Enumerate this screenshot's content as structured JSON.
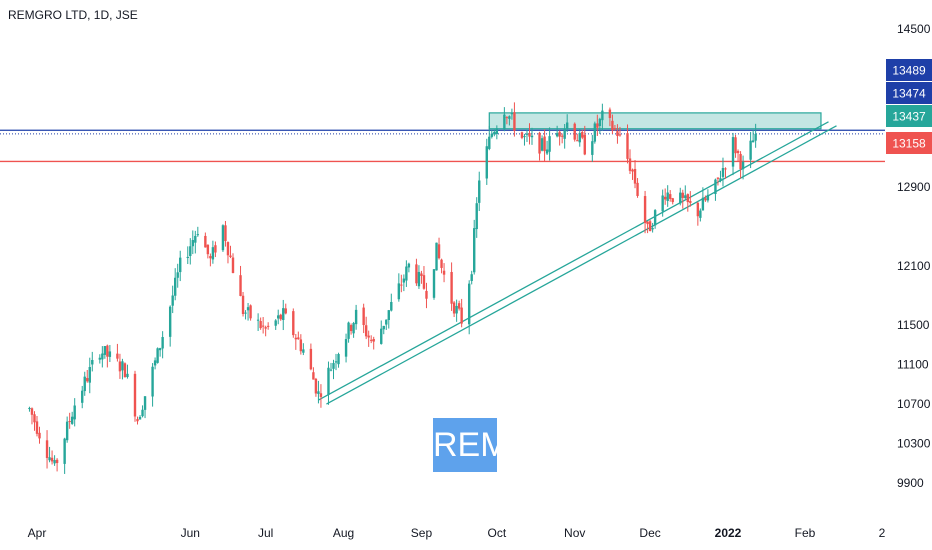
{
  "header": {
    "title": "REMGRO LTD, 1D, JSE"
  },
  "watermark": {
    "text": "REM"
  },
  "colors": {
    "up": "#26a69a",
    "down": "#ef5350",
    "support": "#26a69a",
    "blueLine": "#1e3fa8",
    "redLine": "#ef5350"
  },
  "chart_data": {
    "type": "candlestick",
    "title": "REMGRO LTD, 1D, JSE",
    "ylim": [
      9700,
      14700
    ],
    "y_ticks": [
      14500,
      12900,
      12100,
      11500,
      11100,
      10700,
      10300,
      9900
    ],
    "x_ticks": [
      "Apr",
      "Jun",
      "Jul",
      "Aug",
      "Sep",
      "Oct",
      "Nov",
      "Dec",
      "2022",
      "Feb",
      "2"
    ],
    "price_labels": [
      {
        "value": 13489,
        "label": "13489",
        "color": "#1e3fa8"
      },
      {
        "value": 13474,
        "label": "13474",
        "color": "#1e3fa8"
      },
      {
        "value": 13437,
        "label": "13437",
        "color": "#26a69a"
      },
      {
        "value": 13158,
        "label": "13158",
        "color": "#ef5350"
      }
    ],
    "horizontal_lines": [
      {
        "value": 13474,
        "color": "#1e3fa8",
        "style": "solid"
      },
      {
        "value": 13437,
        "color": "#1e3fa8",
        "style": "dotted"
      },
      {
        "value": 13158,
        "color": "#ef5350",
        "style": "solid"
      }
    ],
    "resistance_zone": {
      "from": 13489,
      "to": 13650,
      "start_date": "Sep 28",
      "end_date": "Feb 7"
    },
    "support_trendline": {
      "start_date": "Jul 22",
      "start_value": 10740,
      "end_date": "Feb 10",
      "end_value": 13560
    },
    "price_path": {
      "start": "Mar 29",
      "end": "Jan 12",
      "points": [
        {
          "date": "Mar 29",
          "close": 10650
        },
        {
          "date": "Apr 8",
          "close": 10050
        },
        {
          "date": "Apr 16",
          "close": 10700
        },
        {
          "date": "Apr 26",
          "close": 11250
        },
        {
          "date": "May 6",
          "close": 11050
        },
        {
          "date": "May 11",
          "close": 10550
        },
        {
          "date": "May 19",
          "close": 11200
        },
        {
          "date": "May 28",
          "close": 12100
        },
        {
          "date": "Jun 4",
          "close": 12480
        },
        {
          "date": "Jun 9",
          "close": 12150
        },
        {
          "date": "Jun 14",
          "close": 12500
        },
        {
          "date": "Jun 22",
          "close": 11650
        },
        {
          "date": "Jul 1",
          "close": 11450
        },
        {
          "date": "Jul 8",
          "close": 11600
        },
        {
          "date": "Jul 16",
          "close": 11250
        },
        {
          "date": "Jul 22",
          "close": 10800
        },
        {
          "date": "Jul 30",
          "close": 11250
        },
        {
          "date": "Aug 6",
          "close": 11600
        },
        {
          "date": "Aug 13",
          "close": 11300
        },
        {
          "date": "Aug 20",
          "close": 11700
        },
        {
          "date": "Aug 27",
          "close": 12100
        },
        {
          "date": "Sep 3",
          "close": 11850
        },
        {
          "date": "Sep 7",
          "close": 12250
        },
        {
          "date": "Sep 13",
          "close": 11750
        },
        {
          "date": "Sep 17",
          "close": 11550
        },
        {
          "date": "Sep 21",
          "close": 12100
        },
        {
          "date": "Sep 24",
          "close": 13000
        },
        {
          "date": "Sep 29",
          "close": 13450
        },
        {
          "date": "Oct 4",
          "close": 13700
        },
        {
          "date": "Oct 11",
          "close": 13400
        },
        {
          "date": "Oct 20",
          "close": 13300
        },
        {
          "date": "Oct 29",
          "close": 13550
        },
        {
          "date": "Nov 5",
          "close": 13300
        },
        {
          "date": "Nov 12",
          "close": 13600
        },
        {
          "date": "Nov 18",
          "close": 13450
        },
        {
          "date": "Nov 24",
          "close": 13050
        },
        {
          "date": "Nov 30",
          "close": 12450
        },
        {
          "date": "Dec 7",
          "close": 12850
        },
        {
          "date": "Dec 14",
          "close": 12750
        },
        {
          "date": "Dec 20",
          "close": 12650
        },
        {
          "date": "Dec 27",
          "close": 12900
        },
        {
          "date": "Jan 3",
          "close": 13350
        },
        {
          "date": "Jan 7",
          "close": 13100
        },
        {
          "date": "Jan 12",
          "close": 13437
        }
      ]
    }
  }
}
